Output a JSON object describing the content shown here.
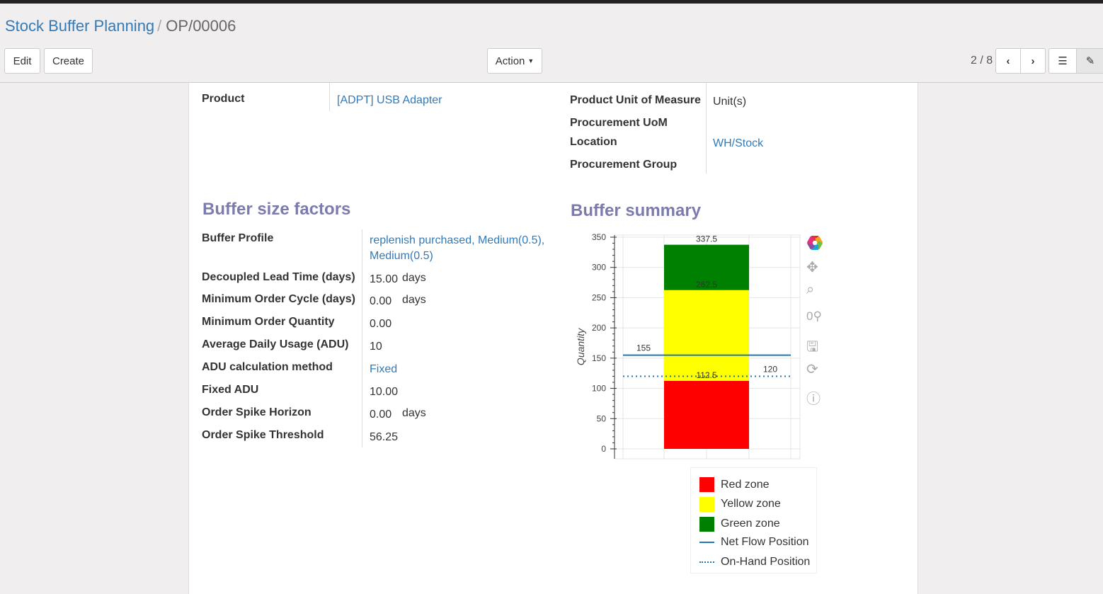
{
  "breadcrumb": {
    "parent": "Stock Buffer Planning",
    "current": "OP/00006"
  },
  "toolbar": {
    "edit": "Edit",
    "create": "Create",
    "action": "Action",
    "pager": "2 / 8"
  },
  "fields_top": {
    "product_label": "Product",
    "product_value": "[ADPT] USB Adapter",
    "uom_label": "Product Unit of Measure",
    "uom_value": "Unit(s)",
    "proc_uom_label": "Procurement UoM",
    "location_label": "Location",
    "location_value": "WH/Stock",
    "proc_group_label": "Procurement Group"
  },
  "factors": {
    "title": "Buffer size factors",
    "rows": [
      {
        "label": "Buffer Profile",
        "value": "replenish purchased, Medium(0.5),",
        "value2": "Medium(0.5)",
        "link": true
      },
      {
        "label": "Decoupled Lead Time (days)",
        "value": "15.00",
        "unit": "days"
      },
      {
        "label": "Minimum Order Cycle (days)",
        "value": "0.00",
        "unit": "days"
      },
      {
        "label": "Minimum Order Quantity",
        "value": "0.00"
      },
      {
        "label": "Average Daily Usage (ADU)",
        "value": "10"
      },
      {
        "label": "ADU calculation method",
        "value": "Fixed",
        "link": true
      },
      {
        "label": "Fixed ADU",
        "value": "10.00"
      },
      {
        "label": "Order Spike Horizon",
        "value": "0.00",
        "unit": "days"
      },
      {
        "label": "Order Spike Threshold",
        "value": "56.25"
      }
    ]
  },
  "summary_title": "Buffer summary",
  "chart_data": {
    "type": "bar",
    "stacked": true,
    "ylabel": "Quantity",
    "ylim": [
      0,
      350
    ],
    "yticks": [
      "0",
      "50",
      "100",
      "150",
      "200",
      "250",
      "300",
      "350"
    ],
    "zones": [
      {
        "name": "Red zone",
        "from": 0,
        "to": 112.5,
        "color": "#ff0000",
        "label": "112.5"
      },
      {
        "name": "Yellow zone",
        "from": 112.5,
        "to": 262.5,
        "color": "#ffff00",
        "label": "262.5"
      },
      {
        "name": "Green zone",
        "from": 262.5,
        "to": 337.5,
        "color": "#008000",
        "label": "337.5"
      }
    ],
    "lines": [
      {
        "name": "Net Flow Position",
        "value": 155,
        "label": "155",
        "style": "solid",
        "color": "#1f77b4"
      },
      {
        "name": "On-Hand Position",
        "value": 120,
        "label": "120",
        "style": "dotted",
        "color": "#1f77b4"
      }
    ],
    "grid": true,
    "legend": "bottom"
  }
}
